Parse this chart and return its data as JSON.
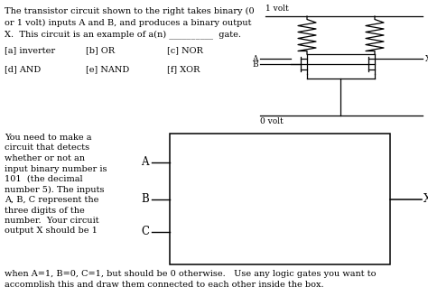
{
  "bg_color": "#ffffff",
  "text_color": "#000000",
  "fig_width": 4.74,
  "fig_height": 3.18,
  "dpi": 100,
  "top_text": [
    "The transistor circuit shown to the right takes binary (0",
    "or 1 volt) inputs A and B, and produces a binary output",
    "X.  This circuit is an example of a(n) __________  gate."
  ],
  "opt_row1": [
    [
      "[a] inverter",
      0.01
    ],
    [
      "[b] OR",
      0.22
    ],
    [
      "[c] NOR",
      0.4
    ]
  ],
  "opt_row2": [
    [
      "[d] AND",
      0.01
    ],
    [
      "[e] NAND",
      0.22
    ],
    [
      "[f] XOR",
      0.4
    ]
  ],
  "bottom_left": [
    "You need to make a",
    "circuit that detects",
    "whether or not an",
    "input binary number is",
    "101  (the decimal",
    "number 5). The inputs",
    "A, B, C represent the",
    "three digits of the",
    "number.  Your circuit",
    "output X should be 1"
  ],
  "foot1": "when A=1, B=0, C=1, but should be 0 otherwise.   Use any logic gates you want to",
  "foot2": "accomplish this and draw them connected to each other inside the box."
}
